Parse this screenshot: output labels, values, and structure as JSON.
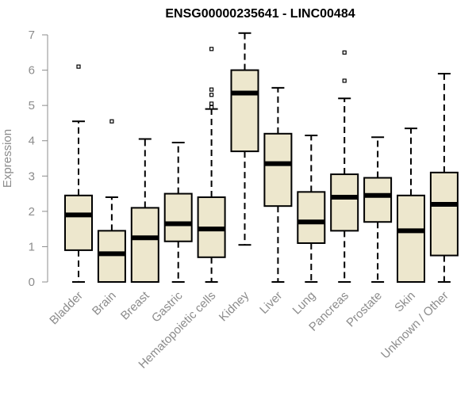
{
  "chart_data": {
    "type": "box",
    "title": "ENSG00000235641 - LINC00484",
    "ylabel": "Expression",
    "xlabel": "",
    "ylim": [
      0,
      7
    ],
    "yticks": [
      0,
      1,
      2,
      3,
      4,
      5,
      6,
      7
    ],
    "grid": false,
    "box_fill": "#ede7cd",
    "stroke_color": "#000000",
    "axis_color": "#8c8c8c",
    "categories": [
      "Bladder",
      "Brain",
      "Breast",
      "Gastric",
      "Hematopoietic cells",
      "Kidney",
      "Liver",
      "Lung",
      "Pancreas",
      "Prostate",
      "Skin",
      "Unknown / Other"
    ],
    "boxes": [
      {
        "min": 0,
        "q1": 0.9,
        "median": 1.9,
        "q3": 2.45,
        "max": 4.55,
        "outliers": [
          6.1
        ]
      },
      {
        "min": 0,
        "q1": 0,
        "median": 0.8,
        "q3": 1.45,
        "max": 2.4,
        "outliers": [
          4.55
        ]
      },
      {
        "min": 0,
        "q1": 0,
        "median": 1.25,
        "q3": 2.1,
        "max": 4.05,
        "outliers": []
      },
      {
        "min": 0,
        "q1": 1.15,
        "median": 1.65,
        "q3": 2.5,
        "max": 3.95,
        "outliers": []
      },
      {
        "min": 0,
        "q1": 0.7,
        "median": 1.5,
        "q3": 2.4,
        "max": 4.9,
        "outliers": [
          4.95,
          5.05,
          5.3,
          5.45,
          6.6
        ]
      },
      {
        "min": 1.05,
        "q1": 3.7,
        "median": 5.35,
        "q3": 6.0,
        "max": 7.05,
        "outliers": []
      },
      {
        "min": 0,
        "q1": 2.15,
        "median": 3.35,
        "q3": 4.2,
        "max": 5.5,
        "outliers": []
      },
      {
        "min": 0,
        "q1": 1.1,
        "median": 1.7,
        "q3": 2.55,
        "max": 4.15,
        "outliers": []
      },
      {
        "min": 0,
        "q1": 1.45,
        "median": 2.4,
        "q3": 3.05,
        "max": 5.2,
        "outliers": [
          5.7,
          6.5
        ]
      },
      {
        "min": 0,
        "q1": 1.7,
        "median": 2.45,
        "q3": 2.95,
        "max": 4.1,
        "outliers": []
      },
      {
        "min": 0,
        "q1": 0,
        "median": 1.45,
        "q3": 2.45,
        "max": 4.35,
        "outliers": []
      },
      {
        "min": 0,
        "q1": 0.75,
        "median": 2.2,
        "q3": 3.1,
        "max": 5.9,
        "outliers": []
      }
    ]
  }
}
